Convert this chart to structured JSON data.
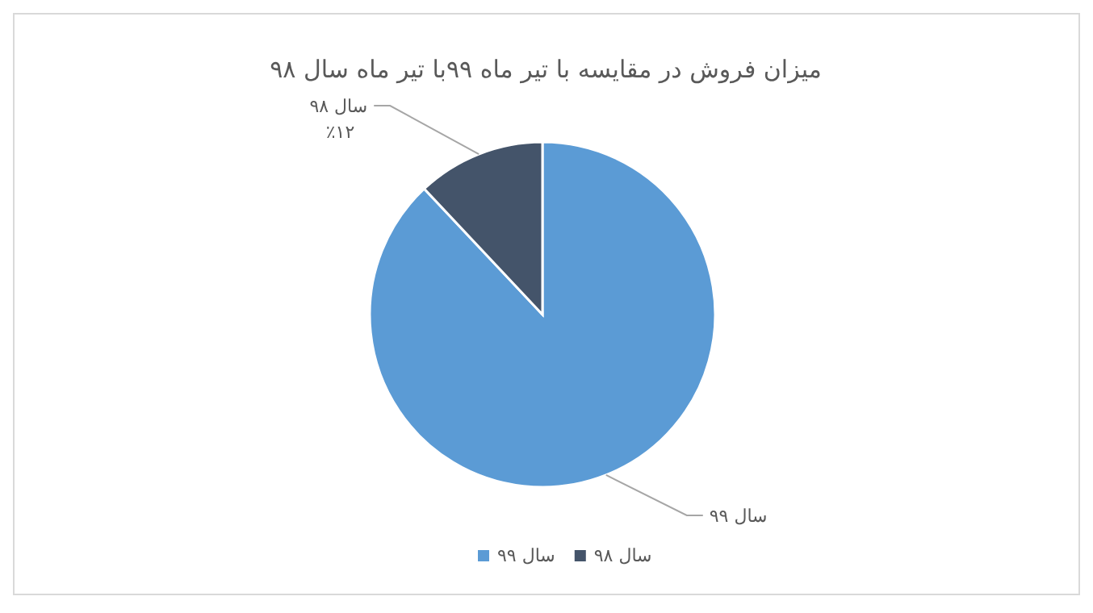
{
  "chart_data": {
    "type": "pie",
    "title": "میزان فروش در مقایسه با تیر ماه ۹۹با تیر ماه سال ۹۸",
    "categories": [
      "سال ۹۹",
      "سال ۹۸"
    ],
    "values": [
      88,
      12
    ],
    "colors": [
      "#5b9bd5",
      "#44546a"
    ],
    "value_labels": [
      null,
      "٪۱۲"
    ],
    "legend": "bottom"
  }
}
